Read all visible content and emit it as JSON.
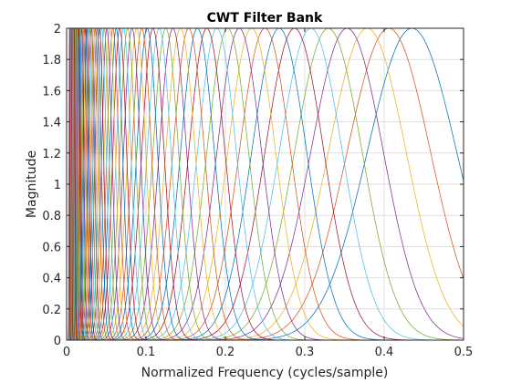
{
  "chart_data": {
    "type": "line",
    "title": "CWT Filter Bank",
    "xlabel": "Normalized Frequency  (cycles/sample)",
    "ylabel": "Magnitude",
    "xlim": [
      0,
      0.5
    ],
    "ylim": [
      0,
      2
    ],
    "xticks": [
      "0",
      "0.1",
      "0.2",
      "0.3",
      "0.4",
      "0.5"
    ],
    "xtick_values": [
      0,
      0.1,
      0.2,
      0.3,
      0.4,
      0.5
    ],
    "yticks": [
      "0",
      "0.2",
      "0.4",
      "0.6",
      "0.8",
      "1",
      "1.2",
      "1.4",
      "1.6",
      "1.8",
      "2"
    ],
    "ytick_values": [
      0,
      0.2,
      0.4,
      0.6,
      0.8,
      1,
      1.2,
      1.4,
      1.6,
      1.8,
      2
    ],
    "grid": true,
    "box": true,
    "peak_magnitude": 2,
    "filter_count": 70,
    "highest_center_frequency": 0.435,
    "voices_per_octave": 10,
    "colors": [
      "#0072bd",
      "#d95319",
      "#edb120",
      "#7e2f8e",
      "#77ac30",
      "#4dbeee",
      "#a2142f"
    ]
  }
}
